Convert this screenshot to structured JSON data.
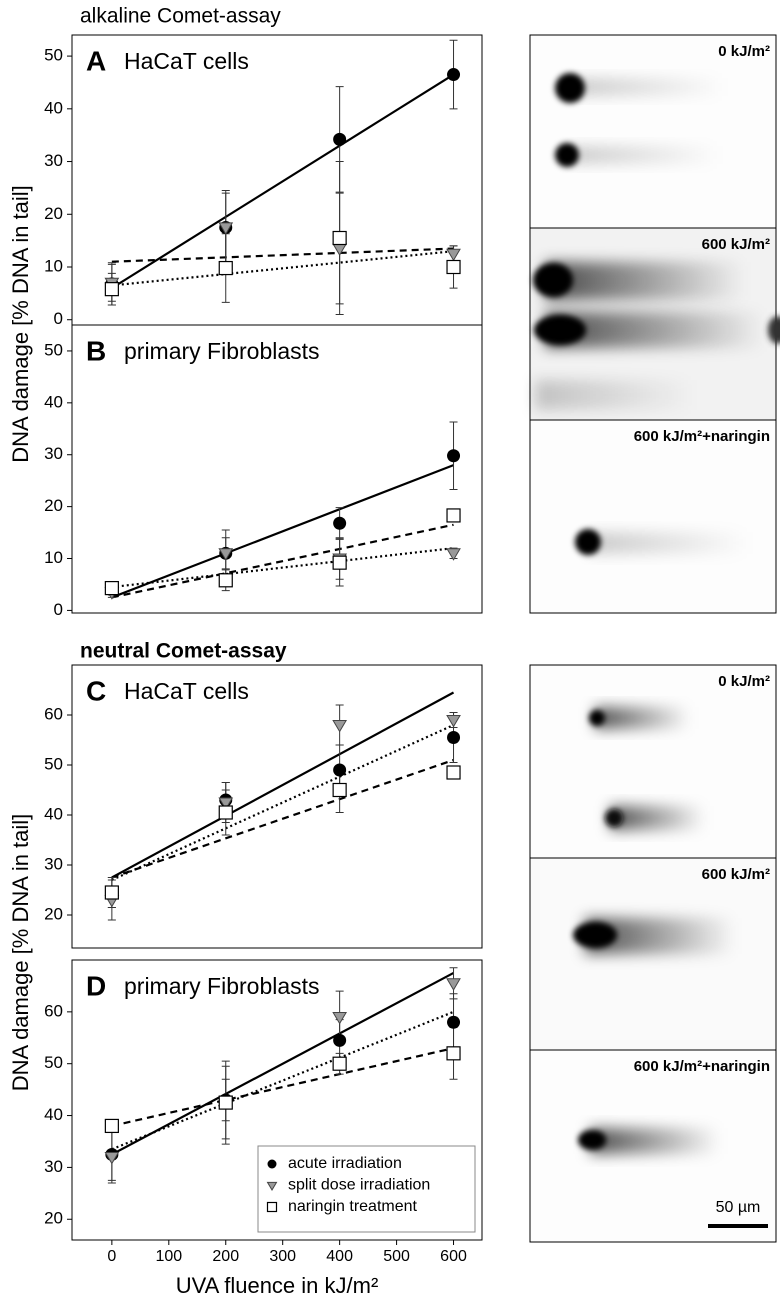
{
  "headings": [
    "alkaline Comet-assay",
    "neutral Comet-assay"
  ],
  "micrographs": [
    "0 kJ/m²",
    "600 kJ/m²",
    "600 kJ/m²+naringin",
    "0 kJ/m²",
    "600 kJ/m²",
    "600 kJ/m²+naringin"
  ],
  "scale_bar": "50 µm",
  "chart_data": [
    {
      "type": "scatter",
      "label": "A",
      "title": "HaCaT cells",
      "ylabel": "DNA damage [% DNA in tail]",
      "x": [
        0,
        200,
        400,
        600
      ],
      "xlim": [
        -70,
        650
      ],
      "ylim": [
        -1,
        54
      ],
      "yticks": [
        0,
        10,
        20,
        30,
        40,
        50
      ],
      "series": [
        {
          "marker": "circle",
          "color": "#000000",
          "line_style": "solid",
          "values": [
            6.8,
            17.5,
            34.2,
            46.5
          ],
          "errors": [
            4,
            7,
            10,
            6.5
          ],
          "fit": [
            6,
            46.5
          ]
        },
        {
          "marker": "triangle",
          "color": "#999999",
          "line_style": "dotted",
          "values": [
            7,
            17.5,
            13.5,
            12.5
          ],
          "errors": [
            3.5,
            6.5,
            10.5,
            1.5
          ],
          "fit": [
            6.5,
            13
          ]
        },
        {
          "marker": "square",
          "color": "#ffffff",
          "line_style": "dashed",
          "values": [
            5.8,
            9.8,
            15.5,
            10
          ],
          "errors": [
            3,
            6.5,
            14.5,
            4
          ],
          "fit": [
            11,
            13.5
          ]
        }
      ]
    },
    {
      "type": "scatter",
      "label": "B",
      "title": "primary Fibroblasts",
      "x": [
        0,
        200,
        400,
        600
      ],
      "xlim": [
        -70,
        650
      ],
      "ylim": [
        -0.5,
        55
      ],
      "yticks": [
        0,
        10,
        20,
        30,
        40,
        50
      ],
      "series": [
        {
          "marker": "circle",
          "color": "#000000",
          "line_style": "solid",
          "values": [
            4,
            11,
            16.8,
            29.8
          ],
          "errors": [
            1,
            4.5,
            3,
            6.5
          ],
          "fit": [
            2.5,
            28
          ]
        },
        {
          "marker": "triangle",
          "color": "#999999",
          "line_style": "dotted",
          "values": [
            3.5,
            11,
            10,
            11
          ],
          "errors": [
            1,
            3,
            4,
            1
          ],
          "fit": [
            4.5,
            12
          ]
        },
        {
          "marker": "square",
          "color": "#ffffff",
          "line_style": "dashed",
          "values": [
            4.3,
            5.8,
            9.2,
            18.3
          ],
          "errors": [
            1,
            2,
            4.5,
            1
          ],
          "fit": [
            2.5,
            16.5
          ]
        }
      ]
    },
    {
      "type": "scatter",
      "label": "C",
      "title": "HaCaT cells",
      "ylabel": "DNA damage [% DNA in tail]",
      "x": [
        0,
        200,
        400,
        600
      ],
      "xlim": [
        -70,
        650
      ],
      "ylim": [
        13.4,
        70
      ],
      "yticks": [
        20,
        30,
        40,
        50,
        60
      ],
      "series": [
        {
          "marker": "circle",
          "color": "#000000",
          "line_style": "solid",
          "values": [
            24.5,
            43,
            49,
            55.5
          ],
          "errors": [
            3,
            3.5,
            5,
            5
          ],
          "fit": [
            27.5,
            64.5
          ]
        },
        {
          "marker": "triangle",
          "color": "#999999",
          "line_style": "dotted",
          "values": [
            23,
            42.5,
            58,
            59
          ],
          "errors": [
            4,
            4,
            4,
            1.5
          ],
          "fit": [
            27,
            58
          ]
        },
        {
          "marker": "square",
          "color": "#ffffff",
          "line_style": "dashed",
          "values": [
            24.5,
            40.5,
            45,
            48.5
          ],
          "errors": [
            3,
            4.5,
            4.5,
            1
          ],
          "fit": [
            27.5,
            51
          ]
        }
      ]
    },
    {
      "type": "scatter",
      "label": "D",
      "title": "primary Fibroblasts",
      "xlabel": "UVA fluence in kJ/m²",
      "x": [
        0,
        200,
        400,
        600
      ],
      "xlim": [
        -70,
        650
      ],
      "xticks": [
        0,
        100,
        200,
        300,
        400,
        500,
        600
      ],
      "ylim": [
        16,
        70
      ],
      "yticks": [
        20,
        30,
        40,
        50,
        60
      ],
      "legend": "lower right",
      "series": [
        {
          "name": "acute irradiation",
          "marker": "circle",
          "color": "#000000",
          "line_style": "solid",
          "values": [
            32.5,
            43,
            54.5,
            58
          ],
          "errors": [
            5,
            4,
            4,
            5.5
          ],
          "fit": [
            32.5,
            67.5
          ]
        },
        {
          "name": "split dose irradiation",
          "marker": "triangle",
          "color": "#999999",
          "line_style": "dotted",
          "values": [
            32,
            42.5,
            59,
            65.5
          ],
          "errors": [
            5,
            8,
            5,
            3
          ],
          "fit": [
            33.5,
            60
          ]
        },
        {
          "name": "naringin treatment",
          "marker": "square",
          "color": "#ffffff",
          "line_style": "dashed",
          "values": [
            38,
            42.5,
            50,
            52
          ],
          "errors": [
            1,
            7,
            2,
            5
          ],
          "fit": [
            38,
            53
          ]
        }
      ]
    }
  ]
}
